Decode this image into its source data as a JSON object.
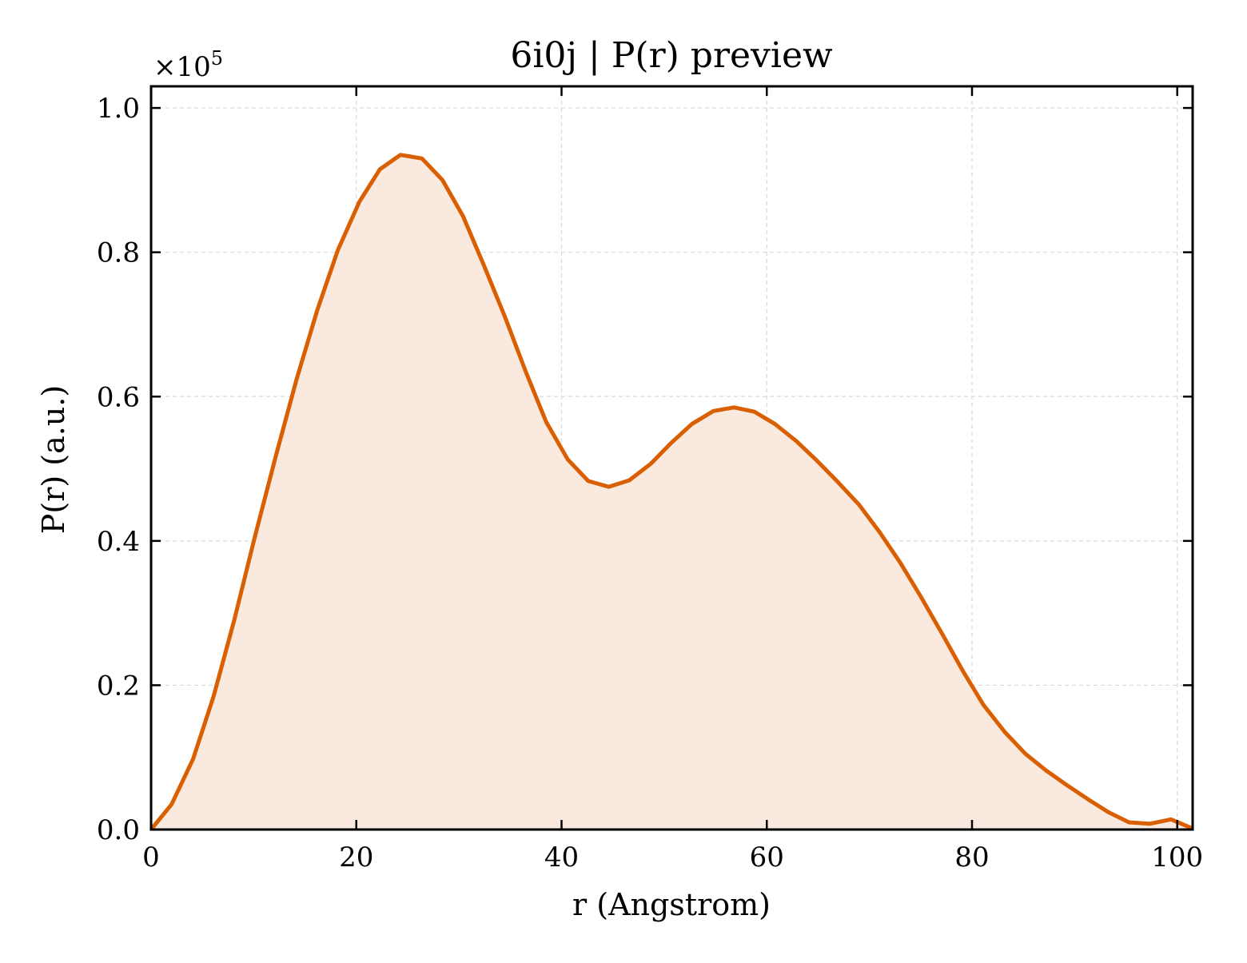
{
  "chart_data": {
    "type": "area",
    "title": "6i0j | P(r) preview",
    "xlabel": "r (Angstrom)",
    "ylabel": "P(r) (a.u.)",
    "y_offset_label": {
      "base": "×10",
      "exponent": "5"
    },
    "xlim": [
      0,
      101.5
    ],
    "ylim": [
      0,
      1.03
    ],
    "y_multiplier": 100000,
    "xticks": [
      0,
      20,
      40,
      60,
      80,
      100
    ],
    "xtick_labels": [
      "0",
      "20",
      "40",
      "60",
      "80",
      "100"
    ],
    "yticks": [
      0.0,
      0.2,
      0.4,
      0.6,
      0.8,
      1.0
    ],
    "ytick_labels": [
      "0.0",
      "0.2",
      "0.4",
      "0.6",
      "0.8",
      "1.0"
    ],
    "grid": true,
    "line_color": "#d95f02",
    "fill_color": "#fae9de",
    "series": [
      {
        "x": [
          0,
          2,
          4.1,
          6.1,
          8.1,
          10.1,
          12.2,
          14.2,
          16.2,
          18.2,
          20.3,
          22.3,
          24.3,
          26.4,
          28.4,
          30.4,
          32.4,
          34.5,
          36.5,
          38.5,
          40.6,
          42.6,
          44.6,
          46.6,
          48.7,
          50.7,
          52.7,
          54.8,
          56.8,
          58.8,
          60.8,
          62.9,
          64.9,
          66.9,
          69,
          71,
          73,
          75,
          77.1,
          79.1,
          81.1,
          83.2,
          85.2,
          87.2,
          89.2,
          91.3,
          93.3,
          95.3,
          97.3,
          99.4,
          101.4
        ],
        "y": [
          0.0,
          0.035,
          0.098,
          0.185,
          0.29,
          0.405,
          0.52,
          0.625,
          0.72,
          0.803,
          0.87,
          0.915,
          0.935,
          0.93,
          0.9,
          0.85,
          0.783,
          0.71,
          0.635,
          0.565,
          0.513,
          0.483,
          0.475,
          0.484,
          0.507,
          0.536,
          0.562,
          0.58,
          0.585,
          0.579,
          0.562,
          0.538,
          0.511,
          0.482,
          0.45,
          0.412,
          0.37,
          0.323,
          0.271,
          0.22,
          0.173,
          0.135,
          0.105,
          0.082,
          0.062,
          0.042,
          0.024,
          0.01,
          0.008,
          0.014,
          0.002
        ]
      }
    ]
  }
}
